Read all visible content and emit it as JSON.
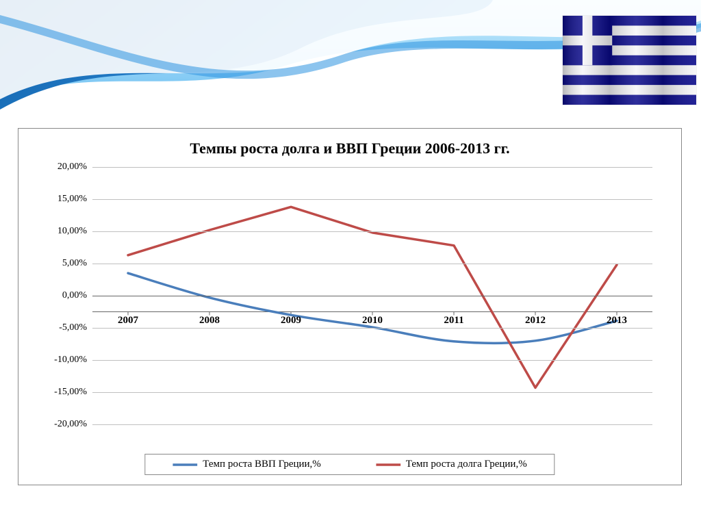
{
  "header": {
    "wave_sky": "#a7dcfc",
    "wave_mid": "#5bb7ee",
    "wave_deep": "#1a7fd6",
    "white": "#ffffff"
  },
  "flag": {
    "blue": "#0a0a8a",
    "white": "#f5f5f8",
    "stripes": 9
  },
  "chart": {
    "title": "Темпы роста долга и ВВП Греции 2006-2013 гг.",
    "title_fontsize": 22,
    "border_color": "#888888",
    "background": "#ffffff",
    "y": {
      "min": -20,
      "max": 20,
      "step": 5,
      "ticks": [
        "20,00%",
        "15,00%",
        "10,00%",
        "5,00%",
        "0,00%",
        "-5,00%",
        "-10,00%",
        "-15,00%",
        "-20,00%"
      ],
      "tick_values": [
        20,
        15,
        10,
        5,
        0,
        -5,
        -10,
        -15,
        -20
      ],
      "label_fontsize": 14,
      "grid_major_color": "#bfbfbf",
      "grid_zero_color": "#666666",
      "x_axis_at_y": -2.5
    },
    "x": {
      "categories": [
        "2007",
        "2008",
        "2009",
        "2010",
        "2011",
        "2012",
        "2013"
      ],
      "label_fontsize": 15,
      "label_fontweight": "bold"
    },
    "series": [
      {
        "name": "Темп роста ВВП Греции,%",
        "color": "#4a7ebb",
        "width": 3.5,
        "smooth": true,
        "values": [
          3.5,
          -0.3,
          -3.0,
          -4.9,
          -7.1,
          -7.0,
          -3.9
        ]
      },
      {
        "name": "Темп роста долга Греции,%",
        "color": "#be4b48",
        "width": 3.5,
        "smooth": false,
        "values": [
          6.3,
          10.2,
          13.8,
          9.8,
          7.8,
          -14.3,
          4.8
        ]
      }
    ],
    "legend": {
      "border_color": "#888888",
      "fontsize": 15
    }
  }
}
